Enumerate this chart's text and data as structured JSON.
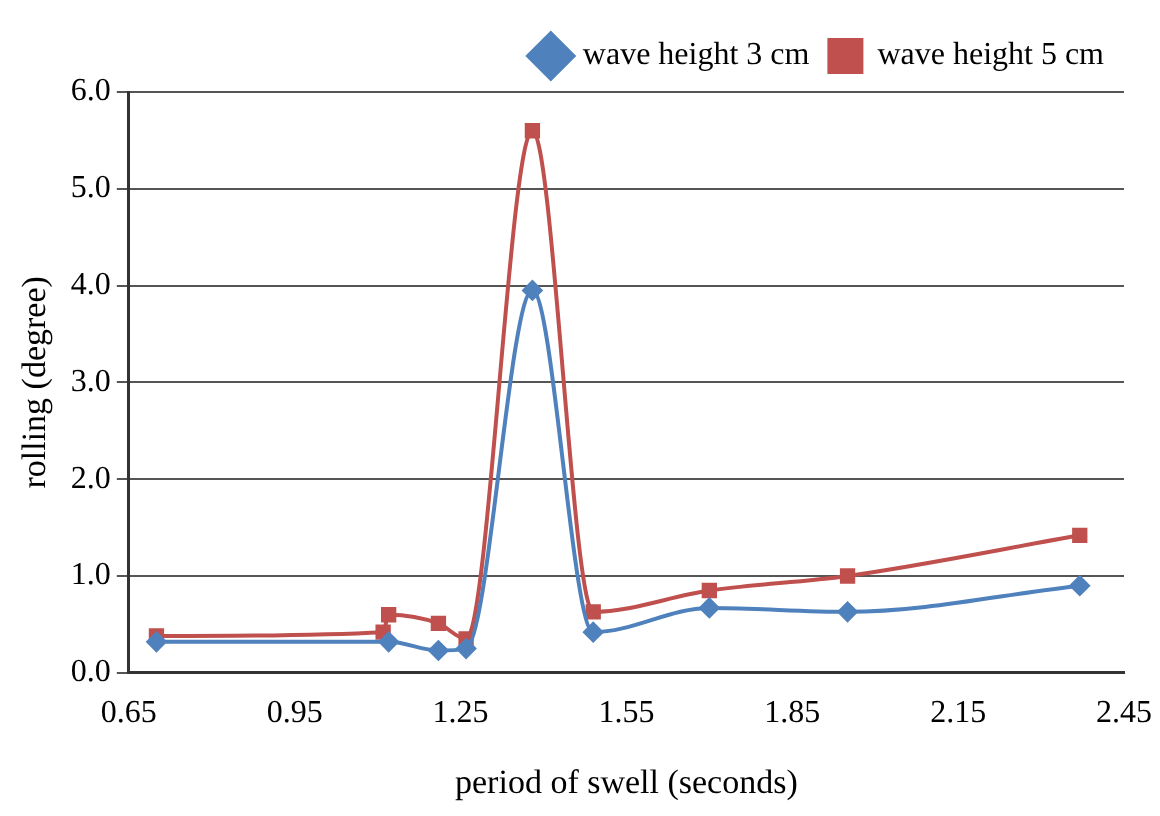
{
  "chart_data": {
    "type": "line",
    "xlabel": "period of swell (seconds)",
    "ylabel": "rolling (degree)",
    "xlim": [
      0.65,
      2.45
    ],
    "xticks": [
      {
        "value": 0.65,
        "label": "0.65"
      },
      {
        "value": 0.95,
        "label": "0.95"
      },
      {
        "value": 1.25,
        "label": "1.25"
      },
      {
        "value": 1.55,
        "label": "1.55"
      },
      {
        "value": 1.85,
        "label": "1.85"
      },
      {
        "value": 2.15,
        "label": "2.15"
      },
      {
        "value": 2.45,
        "label": "2.45"
      }
    ],
    "ylim": [
      0,
      6
    ],
    "yticks": [
      {
        "value": 0,
        "label": "0.0"
      },
      {
        "value": 1,
        "label": "1.0"
      },
      {
        "value": 2,
        "label": "2.0"
      },
      {
        "value": 3,
        "label": "3.0"
      },
      {
        "value": 4,
        "label": "4.0"
      },
      {
        "value": 5,
        "label": "5.0"
      },
      {
        "value": 6,
        "label": "6.0"
      }
    ],
    "grid": "y",
    "legend": "top right",
    "line_style": "solid",
    "series": [
      {
        "name": "wave height 3 cm",
        "color": "#4f81bd",
        "marker": "diamond",
        "x": [
          0.7,
          1.12,
          1.21,
          1.26,
          1.38,
          1.49,
          1.7,
          1.95,
          2.37
        ],
        "values": [
          0.32,
          0.32,
          0.23,
          0.25,
          3.95,
          0.42,
          0.67,
          0.63,
          0.9
        ]
      },
      {
        "name": "wave height 5 cm",
        "color": "#c0504d",
        "marker": "square",
        "x": [
          0.7,
          1.11,
          1.12,
          1.21,
          1.26,
          1.38,
          1.49,
          1.7,
          1.95,
          2.37
        ],
        "values": [
          0.38,
          0.42,
          0.6,
          0.51,
          0.35,
          5.6,
          0.63,
          0.85,
          1.0,
          1.42
        ]
      }
    ]
  }
}
